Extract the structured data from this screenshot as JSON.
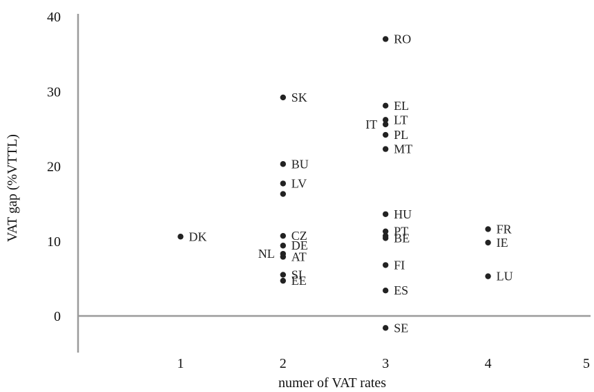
{
  "chart_data": {
    "type": "scatter",
    "title": "",
    "xlabel": "numer of VAT rates",
    "ylabel": "VAT gap (%VTTL)",
    "xlim": [
      0,
      5
    ],
    "ylim": [
      -5,
      40
    ],
    "x_ticks": [
      1,
      2,
      3,
      4,
      5
    ],
    "y_ticks": [
      0,
      10,
      20,
      30,
      40
    ],
    "grid": false,
    "legend": "none",
    "marker_color": "#222222",
    "points": [
      {
        "label": "DK",
        "x": 1,
        "y": 10.6,
        "label_side": "right"
      },
      {
        "label": "SK",
        "x": 2,
        "y": 29.2,
        "label_side": "right"
      },
      {
        "label": "BU",
        "x": 2,
        "y": 20.3,
        "label_side": "right"
      },
      {
        "label": "LV",
        "x": 2,
        "y": 17.7,
        "label_side": "right"
      },
      {
        "label": "",
        "x": 2,
        "y": 16.3,
        "label_side": "right"
      },
      {
        "label": "CZ",
        "x": 2,
        "y": 10.7,
        "label_side": "right"
      },
      {
        "label": "DE",
        "x": 2,
        "y": 9.4,
        "label_side": "right"
      },
      {
        "label": "AT",
        "x": 2,
        "y": 7.9,
        "label_side": "right"
      },
      {
        "label": "NL",
        "x": 2,
        "y": 8.3,
        "label_side": "left"
      },
      {
        "label": "SI",
        "x": 2,
        "y": 5.5,
        "label_side": "right"
      },
      {
        "label": "EE",
        "x": 2,
        "y": 4.7,
        "label_side": "right"
      },
      {
        "label": "RO",
        "x": 3,
        "y": 37.0,
        "label_side": "right"
      },
      {
        "label": "EL",
        "x": 3,
        "y": 28.1,
        "label_side": "right"
      },
      {
        "label": "LT",
        "x": 3,
        "y": 26.2,
        "label_side": "right"
      },
      {
        "label": "IT",
        "x": 3,
        "y": 25.6,
        "label_side": "left"
      },
      {
        "label": "PL",
        "x": 3,
        "y": 24.2,
        "label_side": "right"
      },
      {
        "label": "MT",
        "x": 3,
        "y": 22.3,
        "label_side": "right"
      },
      {
        "label": "HU",
        "x": 3,
        "y": 13.6,
        "label_side": "right"
      },
      {
        "label": "PT",
        "x": 3,
        "y": 11.3,
        "label_side": "right"
      },
      {
        "label": "",
        "x": 3,
        "y": 10.7,
        "label_side": "right"
      },
      {
        "label": "BE",
        "x": 3,
        "y": 10.4,
        "label_side": "right"
      },
      {
        "label": "FI",
        "x": 3,
        "y": 6.8,
        "label_side": "right"
      },
      {
        "label": "ES",
        "x": 3,
        "y": 3.4,
        "label_side": "right"
      },
      {
        "label": "SE",
        "x": 3,
        "y": -1.6,
        "label_side": "right"
      },
      {
        "label": "FR",
        "x": 4,
        "y": 11.6,
        "label_side": "right"
      },
      {
        "label": "IE",
        "x": 4,
        "y": 9.8,
        "label_side": "right"
      },
      {
        "label": "LU",
        "x": 4,
        "y": 5.3,
        "label_side": "right"
      }
    ]
  }
}
